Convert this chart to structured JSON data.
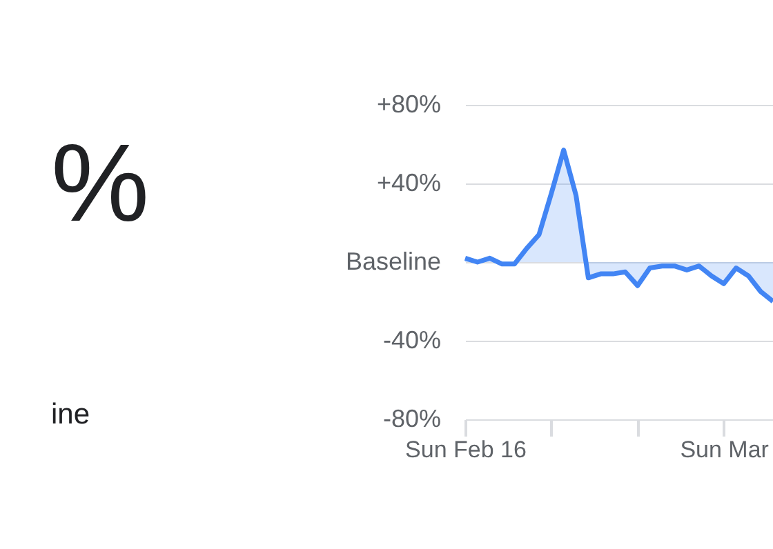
{
  "chart_data": {
    "type": "area",
    "categories": [
      "Sun Feb 16",
      null,
      null,
      null,
      null,
      null,
      null,
      null,
      null,
      null,
      null,
      null,
      null,
      null,
      null,
      null,
      null,
      null,
      null,
      null,
      null,
      "Sun Mar",
      null,
      null,
      null,
      null
    ],
    "series": [
      {
        "color": "#4285f4",
        "values": [
          2,
          0,
          2,
          -1,
          -1,
          7,
          14,
          35,
          57,
          34,
          -8,
          -6,
          -6,
          -5,
          -12,
          -3,
          -2,
          -2,
          -4,
          -2,
          -7,
          -11,
          -3,
          -7,
          -15,
          -20
        ]
      }
    ],
    "ylim": [
      -80,
      80
    ],
    "yticks": [
      {
        "value": 80,
        "label": "+80%"
      },
      {
        "value": 40,
        "label": "+40%"
      },
      {
        "value": 0,
        "label": "Baseline"
      },
      {
        "value": -40,
        "label": "-40%"
      },
      {
        "value": -80,
        "label": "-80%"
      }
    ],
    "grid": "y",
    "annotations": [
      "%",
      "ine"
    ]
  }
}
